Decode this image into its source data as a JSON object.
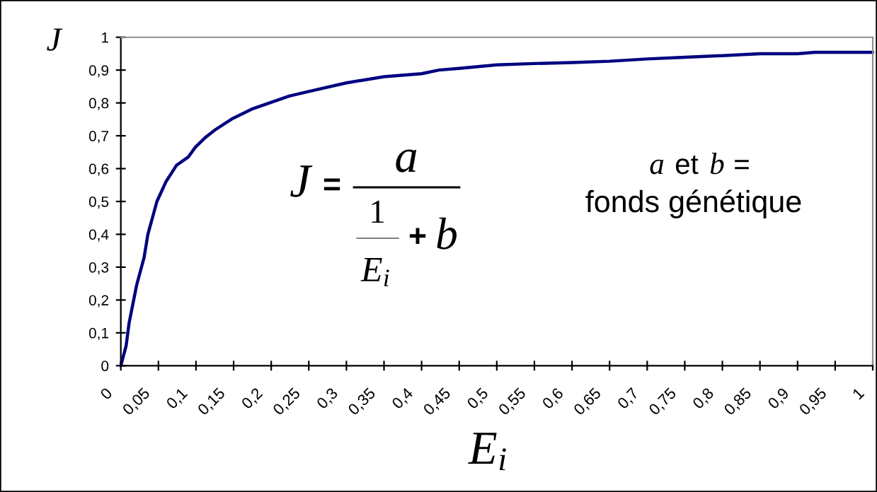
{
  "chart_data": {
    "type": "line",
    "xlabel": "E$_{i}$",
    "ylabel": "J",
    "x": [
      0,
      0.007,
      0.011,
      0.021,
      0.031,
      0.036,
      0.042,
      0.048,
      0.06,
      0.074,
      0.09,
      0.099,
      0.113,
      0.126,
      0.149,
      0.174,
      0.199,
      0.224,
      0.25,
      0.3,
      0.35,
      0.4,
      0.423,
      0.45,
      0.5,
      0.55,
      0.6,
      0.65,
      0.7,
      0.75,
      0.8,
      0.85,
      0.9,
      0.923,
      0.95,
      1
    ],
    "series": [
      {
        "color": "#000080",
        "values": [
          0,
          0.06,
          0.13,
          0.245,
          0.33,
          0.4,
          0.45,
          0.5,
          0.56,
          0.61,
          0.636,
          0.665,
          0.696,
          0.719,
          0.753,
          0.781,
          0.801,
          0.821,
          0.835,
          0.861,
          0.88,
          0.889,
          0.9,
          0.905,
          0.916,
          0.92,
          0.923,
          0.927,
          0.934,
          0.939,
          0.944,
          0.95,
          0.95,
          0.954,
          0.954,
          0.954
        ]
      }
    ],
    "xlim": [
      0,
      1
    ],
    "ylim": [
      0,
      1
    ],
    "xticks": [
      0,
      {
        "value": 0.05,
        "label": "0,05"
      },
      {
        "value": 0.1,
        "label": "0,1"
      },
      {
        "value": 0.15,
        "label": "0,15"
      },
      {
        "value": 0.2,
        "label": "0,2"
      },
      {
        "value": 0.25,
        "label": "0,25"
      },
      {
        "value": 0.3,
        "label": "0,3"
      },
      {
        "value": 0.35,
        "label": "0,35"
      },
      {
        "value": 0.4,
        "label": "0,4"
      },
      {
        "value": 0.45,
        "label": "0,45"
      },
      {
        "value": 0.5,
        "label": "0,5"
      },
      {
        "value": 0.55,
        "label": "0,55"
      },
      {
        "value": 0.6,
        "label": "0,6"
      },
      {
        "value": 0.65,
        "label": "0,65"
      },
      {
        "value": 0.7,
        "label": "0,7"
      },
      {
        "value": 0.75,
        "label": "0,75"
      },
      {
        "value": 0.8,
        "label": "0,8"
      },
      {
        "value": 0.85,
        "label": "0,85"
      },
      {
        "value": 0.9,
        "label": "0,9"
      },
      {
        "value": 0.95,
        "label": "0,95"
      },
      1
    ],
    "yticks": [
      0,
      {
        "value": 0.1,
        "label": "0,1"
      },
      {
        "value": 0.2,
        "label": "0,2"
      },
      {
        "value": 0.3,
        "label": "0,3"
      },
      {
        "value": 0.4,
        "label": "0,4"
      },
      {
        "value": 0.5,
        "label": "0,5"
      },
      {
        "value": 0.6,
        "label": "0,6"
      },
      {
        "value": 0.7,
        "label": "0,7"
      },
      {
        "value": 0.8,
        "label": "0,8"
      },
      {
        "value": 0.9,
        "label": "0,9"
      },
      1
    ],
    "annotations": [
      "J",
      "=",
      "a",
      "1",
      "E$_{i}$",
      "+",
      "b",
      "a",
      "et",
      "b",
      "=",
      "fonds génétique"
    ]
  }
}
